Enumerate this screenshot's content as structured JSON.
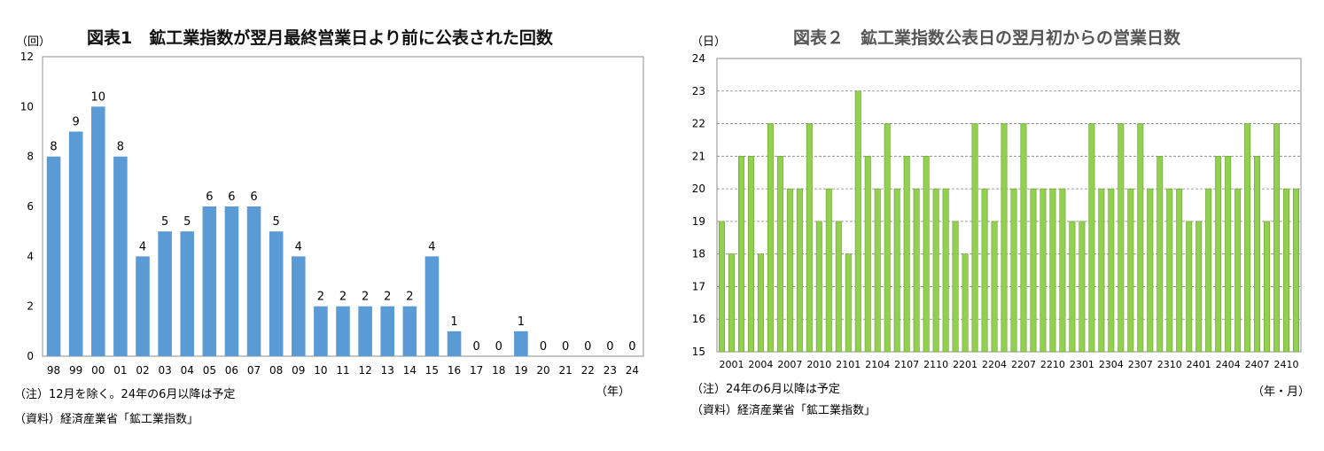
{
  "chart_data": [
    {
      "type": "bar",
      "title": "図表1　鉱工業指数が翌月最終営業日より前に公表された回数",
      "ylabel": "（回）",
      "xlabel": "（年）",
      "ylim": [
        0,
        12
      ],
      "yticks": [
        0,
        2,
        4,
        6,
        8,
        10,
        12
      ],
      "grid": false,
      "color": "#5B9BD5",
      "categories": [
        "98",
        "99",
        "00",
        "01",
        "02",
        "03",
        "04",
        "05",
        "06",
        "07",
        "08",
        "09",
        "10",
        "11",
        "12",
        "13",
        "14",
        "15",
        "16",
        "17",
        "18",
        "19",
        "20",
        "21",
        "22",
        "23",
        "24"
      ],
      "values": [
        8,
        9,
        10,
        8,
        4,
        5,
        5,
        6,
        6,
        6,
        5,
        4,
        2,
        2,
        2,
        2,
        2,
        4,
        1,
        0,
        0,
        1,
        0,
        0,
        0,
        0,
        0
      ],
      "notes": [
        "（注）12月を除く。24年の6月以降は予定",
        "（資料）経済産業省「鉱工業指数」"
      ]
    },
    {
      "type": "bar",
      "title": "図表２　鉱工業指数公表日の翌月初からの営業日数",
      "ylabel": "（日）",
      "xlabel": "（年・月）",
      "ylim": [
        15,
        24
      ],
      "yticks": [
        15,
        16,
        17,
        18,
        19,
        20,
        21,
        22,
        23,
        24
      ],
      "grid": true,
      "color": "#92D050",
      "categories": [
        "2001",
        "2002",
        "2003",
        "2004",
        "2005",
        "2006",
        "2007",
        "2008",
        "2009",
        "2010",
        "2011",
        "2012",
        "2101",
        "2102",
        "2103",
        "2104",
        "2105",
        "2106",
        "2107",
        "2108",
        "2109",
        "2110",
        "2111",
        "2112",
        "2201",
        "2202",
        "2203",
        "2204",
        "2205",
        "2206",
        "2207",
        "2208",
        "2209",
        "2210",
        "2211",
        "2212",
        "2301",
        "2302",
        "2303",
        "2304",
        "2305",
        "2306",
        "2307",
        "2308",
        "2309",
        "2310",
        "2311",
        "2312",
        "2401",
        "2402",
        "2403",
        "2404",
        "2405",
        "2406",
        "2407",
        "2408",
        "2409",
        "2410",
        "2411",
        "2412"
      ],
      "tick_labels": [
        "2001",
        "2004",
        "2007",
        "2010",
        "2101",
        "2104",
        "2107",
        "2110",
        "2201",
        "2204",
        "2207",
        "2210",
        "2301",
        "2304",
        "2307",
        "2310",
        "2401",
        "2404",
        "2407",
        "2410"
      ],
      "values": [
        19,
        18,
        21,
        21,
        18,
        22,
        21,
        20,
        20,
        22,
        19,
        20,
        19,
        18,
        23,
        21,
        20,
        22,
        20,
        21,
        20,
        21,
        20,
        20,
        19,
        18,
        22,
        20,
        19,
        22,
        20,
        22,
        20,
        20,
        20,
        20,
        19,
        19,
        22,
        20,
        20,
        22,
        20,
        22,
        20,
        21,
        20,
        20,
        19,
        19,
        20,
        21,
        21,
        20,
        22,
        21,
        19,
        22,
        20,
        20
      ],
      "notes": [
        "（注）24年の6月以降は予定",
        "（資料）経済産業省「鉱工業指数」"
      ]
    }
  ]
}
